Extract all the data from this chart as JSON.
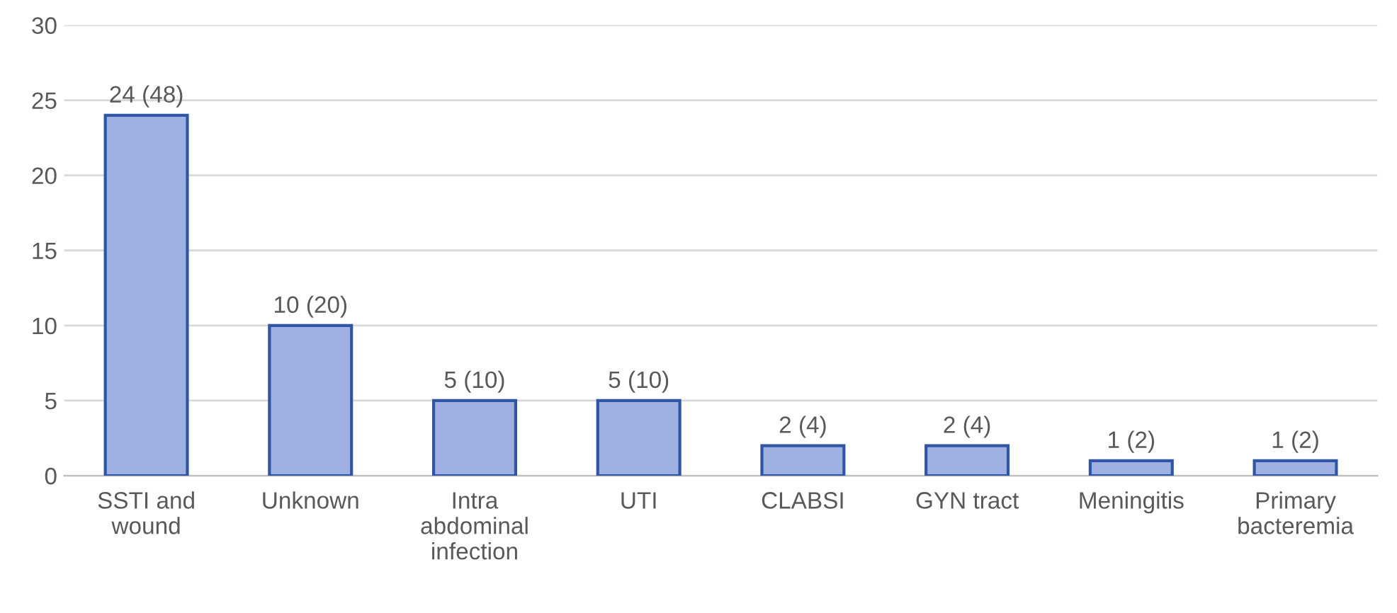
{
  "chart_data": {
    "type": "bar",
    "categories": [
      "SSTI and\nwound",
      "Unknown",
      "Intra\nabdominal\ninfection",
      "UTI",
      "CLABSI",
      "GYN tract",
      "Meningitis",
      "Primary\nbacteremia"
    ],
    "values": [
      24,
      10,
      5,
      5,
      2,
      2,
      1,
      1
    ],
    "value_labels": [
      "24 (48)",
      "10 (20)",
      "5 (10)",
      "5 (10)",
      "2 (4)",
      "2 (4)",
      "1 (2)",
      "1 (2)"
    ],
    "color": "#9eb1e2",
    "ylim": [
      0,
      30
    ],
    "yticks": [
      0,
      5,
      10,
      15,
      20,
      25,
      30
    ],
    "grid": "y",
    "legend": false
  }
}
